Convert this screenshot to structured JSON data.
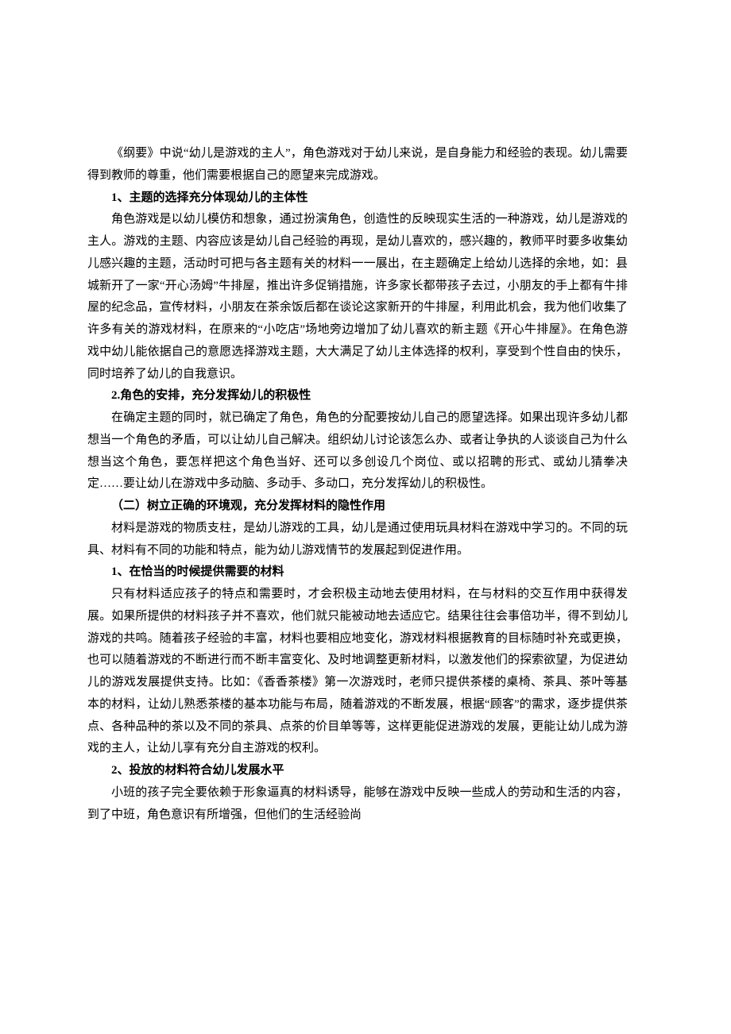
{
  "document": {
    "font_family": "SimSun",
    "font_size": 15,
    "line_height": 1.85,
    "text_color": "#000000",
    "background_color": "#ffffff",
    "text_indent_em": 2,
    "paragraphs": [
      {
        "type": "paragraph",
        "text": "《纲要》中说“幼儿是游戏的主人”，角色游戏对于幼儿来说，是自身能力和经验的表现。幼儿需要得到教师的尊重，他们需要根据自己的愿望来完成游戏。"
      },
      {
        "type": "heading",
        "text": "1、主题的选择充分体现幼儿的主体性"
      },
      {
        "type": "paragraph",
        "text": "角色游戏是以幼儿模仿和想象，通过扮演角色，创造性的反映现实生活的一种游戏，幼儿是游戏的主人。游戏的主题、内容应该是幼儿自己经验的再现，是幼儿喜欢的，感兴趣的，教师平时要多收集幼儿感兴趣的主题，活动时可把与各主题有关的材料一一展出，在主题确定上给幼儿选择的余地，如：县城新开了一家“开心汤姆”牛排屋，推出许多促销措施，许多家长都带孩子去过，小朋友的手上都有牛排屋的纪念品，宣传材料，小朋友在茶余饭后都在谈论这家新开的牛排屋，利用此机会，我为他们收集了许多有关的游戏材料，在原来的“小吃店”场地旁边增加了幼儿喜欢的新主题《开心牛排屋》。在角色游戏中幼儿能依据自己的意愿选择游戏主题，大大满足了幼儿主体选择的权利，享受到个性自由的快乐，同时培养了幼儿的自我意识。"
      },
      {
        "type": "heading",
        "text": "2.角色的安排，充分发挥幼儿的积极性"
      },
      {
        "type": "paragraph",
        "text": "在确定主题的同时，就已确定了角色，角色的分配要按幼儿自己的愿望选择。如果出现许多幼儿都想当一个角色的矛盾，可以让幼儿自己解决。组织幼儿讨论该怎么办、或者让争执的人谈谈自己为什么想当这个角色，要怎样把这个角色当好、还可以多创设几个岗位、或以招聘的形式、或幼儿猜拳决定……要让幼儿在游戏中多动脑、多动手、多动口，充分发挥幼儿的积极性。"
      },
      {
        "type": "heading",
        "text": "（二）树立正确的环境观，充分发挥材料的隐性作用"
      },
      {
        "type": "paragraph",
        "text": "材料是游戏的物质支柱，是幼儿游戏的工具，幼儿是通过使用玩具材料在游戏中学习的。不同的玩具、材料有不同的功能和特点，能为幼儿游戏情节的发展起到促进作用。"
      },
      {
        "type": "heading",
        "text": "1、在恰当的时候提供需要的材料"
      },
      {
        "type": "paragraph",
        "text": "只有材料适应孩子的特点和需要时，才会积极主动地去使用材料，在与材料的交互作用中获得发展。如果所提供的材料孩子并不喜欢，他们就只能被动地去适应它。结果往往会事倍功半，得不到幼儿游戏的共鸣。随着孩子经验的丰富，材料也要相应地变化，游戏材料根据教育的目标随时补充或更换，也可以随着游戏的不断进行而不断丰富变化、及时地调整更新材料，以激发他们的探索欲望，为促进幼儿的游戏发展提供支持。比如：《香香茶楼》第一次游戏时，老师只提供茶楼的桌椅、茶具、茶叶等基本的材料，让幼儿熟悉茶楼的基本功能与布局，随着游戏的不断发展，根据“顾客”的需求，逐步提供茶点、各种品种的茶以及不同的茶具、点茶的价目单等等，这样更能促进游戏的发展，更能让幼儿成为游戏的主人，让幼儿享有充分自主游戏的权利。"
      },
      {
        "type": "heading",
        "text": "2、投放的材料符合幼儿发展水平"
      },
      {
        "type": "paragraph",
        "text": "小班的孩子完全要依赖于形象逼真的材料诱导，能够在游戏中反映一些成人的劳动和生活的内容，到了中班，角色意识有所增强，但他们的生活经验尚"
      }
    ]
  }
}
